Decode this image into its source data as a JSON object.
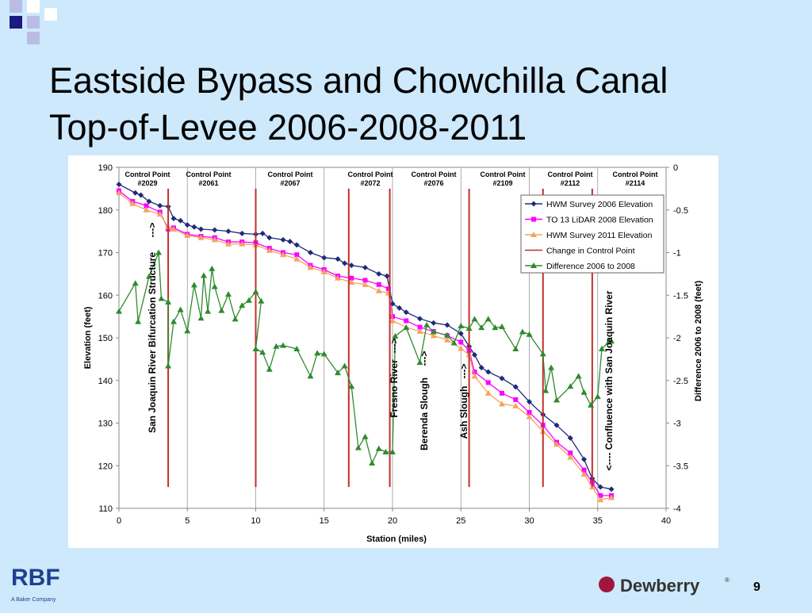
{
  "slide": {
    "title_line1": "Eastside Bypass and Chowchilla Canal",
    "title_line2": "Top-of-Levee 2006-2008-2011",
    "logo_left": "RBF",
    "logo_left_sub": "A Baker Company",
    "logo_right": "Dewberry",
    "logo_right_mark": "®",
    "page_number": "9"
  },
  "chart_data": {
    "type": "line",
    "xlabel": "Station (miles)",
    "ylabel": "Elevation (feet)",
    "y2label": "Difference 2006 to 2008 (feet)",
    "xlim": [
      0,
      40
    ],
    "xticks": [
      0,
      5,
      10,
      15,
      20,
      25,
      30,
      35,
      40
    ],
    "ylim": [
      110,
      190
    ],
    "yticks": [
      110,
      120,
      130,
      140,
      150,
      160,
      170,
      180,
      190
    ],
    "y2lim": [
      -4,
      0
    ],
    "y2ticks": [
      -4,
      -3.5,
      -3,
      -2.5,
      -2,
      -1.5,
      -1,
      -0.5,
      0
    ],
    "xgrid": true,
    "legend": "upper right",
    "control_points": [
      {
        "line1": "Control Point",
        "line2": "#2029"
      },
      {
        "line1": "Control Point",
        "line2": "#2061"
      },
      {
        "line1": "Control Point",
        "line2": "#2067"
      },
      {
        "line1": "Control Point",
        "line2": "#2072"
      },
      {
        "line1": "Control Point",
        "line2": "#2076"
      },
      {
        "line1": "Control Point",
        "line2": "#2109"
      },
      {
        "line1": "Control Point",
        "line2": "#2112"
      },
      {
        "line1": "Control Point",
        "line2": "#2114"
      }
    ],
    "annotations": [
      "San Joaquin River Bifurcation Structure",
      "--->",
      "Fresno River",
      "--->",
      "Berenda Slough",
      "--->",
      "Ash  Slough",
      "--->",
      "<---- Confluence with San Joaquin River"
    ],
    "series": [
      {
        "name": "HWM Survey 2006 Elevation",
        "color": "#1f2a7a",
        "marker": "diamond",
        "x": [
          0,
          1.2,
          1.6,
          2.2,
          3,
          3.6,
          4,
          4.5,
          5,
          5.5,
          6,
          7,
          8,
          9,
          10,
          10.5,
          11,
          12,
          12.5,
          13,
          14,
          15,
          16,
          16.5,
          17,
          18,
          19,
          19.6,
          20,
          20.5,
          21,
          22,
          23,
          24,
          25,
          25.6,
          26,
          26.5,
          27,
          28,
          29,
          30,
          31,
          32,
          33,
          34,
          34.6,
          35.2,
          36
        ],
        "values": [
          186,
          184,
          183.5,
          182,
          181,
          180.8,
          178,
          177.5,
          176.5,
          176,
          175.5,
          175.3,
          175,
          174.5,
          174.3,
          174.5,
          173.5,
          173,
          172.6,
          171.8,
          170,
          168.8,
          168.5,
          167.5,
          167,
          166.5,
          165,
          164.5,
          158,
          157,
          156,
          154.5,
          153.5,
          153,
          151,
          148,
          146,
          143,
          142,
          140.5,
          138.5,
          135,
          132,
          129.5,
          126.5,
          121.5,
          117,
          115,
          114.5
        ]
      },
      {
        "name": "TO 13 LiDAR 2008 Elevation",
        "color": "#ff00ff",
        "marker": "square",
        "x": [
          0,
          1,
          2,
          3,
          3.6,
          4,
          5,
          6,
          7,
          8,
          9,
          10,
          11,
          12,
          13,
          14,
          15,
          16,
          17,
          18,
          19,
          19.7,
          20,
          21,
          22,
          23,
          24,
          25,
          25.6,
          26,
          27,
          28,
          29,
          30,
          31,
          32,
          33,
          34,
          34.6,
          35.2,
          36
        ],
        "values": [
          184.5,
          182,
          181,
          179.5,
          175.5,
          175.8,
          174.3,
          173.8,
          173.5,
          172.5,
          172.5,
          172.3,
          171,
          170,
          169.5,
          167,
          166,
          164.5,
          164,
          163.5,
          162.5,
          161.5,
          155,
          154,
          152.5,
          151.5,
          150.5,
          149,
          147,
          142,
          139.5,
          137,
          135.5,
          132.5,
          129.5,
          125.5,
          123,
          119,
          116,
          113,
          113
        ]
      },
      {
        "name": "HWM Survey 2011 Elevation",
        "color": "#f4a460",
        "marker": "triangle",
        "x": [
          0,
          1,
          2,
          3,
          3.6,
          4,
          5,
          6,
          7,
          8,
          9,
          10,
          11,
          12,
          13,
          14,
          15,
          16,
          17,
          18,
          19,
          19.7,
          20,
          21,
          22,
          23,
          24,
          25,
          25.6,
          26,
          27,
          28,
          29,
          30,
          31,
          32,
          33,
          34,
          34.6,
          35.2,
          36
        ],
        "values": [
          184,
          181.5,
          180,
          179,
          176,
          175.5,
          174,
          173.5,
          173,
          172,
          172,
          171.8,
          170.5,
          169.5,
          168.5,
          166.5,
          165.5,
          164,
          163,
          162.5,
          161,
          160.5,
          154,
          152.5,
          151.5,
          150.5,
          149.5,
          147.5,
          146,
          141,
          137,
          134.5,
          134,
          131.5,
          128,
          125,
          122,
          118,
          115,
          112,
          112.5
        ]
      },
      {
        "name": "Change in Control Point",
        "color": "#c0302a",
        "marker": "none",
        "x": [
          3.6,
          3.6,
          null,
          10,
          10,
          null,
          16.8,
          16.8,
          null,
          19.8,
          19.8,
          null,
          25.6,
          25.6,
          null,
          31,
          31,
          null,
          34.6,
          34.6
        ],
        "values": [
          185,
          115,
          null,
          185,
          115,
          null,
          185,
          115,
          null,
          185,
          115,
          null,
          185,
          115,
          null,
          185,
          115,
          null,
          185,
          115
        ]
      },
      {
        "name": "Difference 2006 to 2008",
        "color": "#2e8b2e",
        "marker": "triangle",
        "axis": "y2",
        "x": [
          0,
          1.2,
          1.4,
          2.2,
          2.9,
          3.1,
          3.6,
          3.6,
          4,
          4.5,
          5,
          5.5,
          6,
          6.2,
          6.5,
          6.8,
          7,
          7.5,
          8,
          8.5,
          9,
          9.5,
          10,
          10.4,
          10,
          10.5,
          11,
          11.5,
          12,
          13,
          14,
          14.5,
          15,
          16,
          16.5,
          17,
          17.5,
          18,
          18.5,
          19,
          19.5,
          20,
          20.2,
          21,
          22,
          22.5,
          23,
          24,
          24.5,
          25,
          25.6,
          26,
          26.5,
          27,
          27.5,
          28,
          29,
          29.5,
          30,
          31,
          31.2,
          31.6,
          32,
          33,
          33.6,
          34,
          34.5,
          35,
          35.3,
          35.8,
          36
        ],
        "values": [
          -1.69,
          -1.36,
          -1.81,
          -1.28,
          -1.0,
          -1.54,
          -1.58,
          -2.33,
          -1.81,
          -1.67,
          -1.92,
          -1.38,
          -1.77,
          -1.27,
          -1.69,
          -1.19,
          -1.4,
          -1.68,
          -1.49,
          -1.78,
          -1.62,
          -1.56,
          -1.46,
          -1.57,
          -2.13,
          -2.17,
          -2.37,
          -2.1,
          -2.09,
          -2.13,
          -2.45,
          -2.18,
          -2.19,
          -2.41,
          -2.33,
          -2.57,
          -3.29,
          -3.16,
          -3.47,
          -3.3,
          -3.34,
          -3.34,
          -1.98,
          -1.88,
          -2.29,
          -1.85,
          -1.93,
          -1.97,
          -2.06,
          -1.86,
          -1.89,
          -1.78,
          -1.88,
          -1.78,
          -1.88,
          -1.87,
          -2.13,
          -1.93,
          -1.96,
          -2.19,
          -2.62,
          -2.35,
          -2.73,
          -2.57,
          -2.45,
          -2.64,
          -2.79,
          -2.69,
          -2.13,
          -2.05,
          -2.04
        ]
      }
    ]
  }
}
